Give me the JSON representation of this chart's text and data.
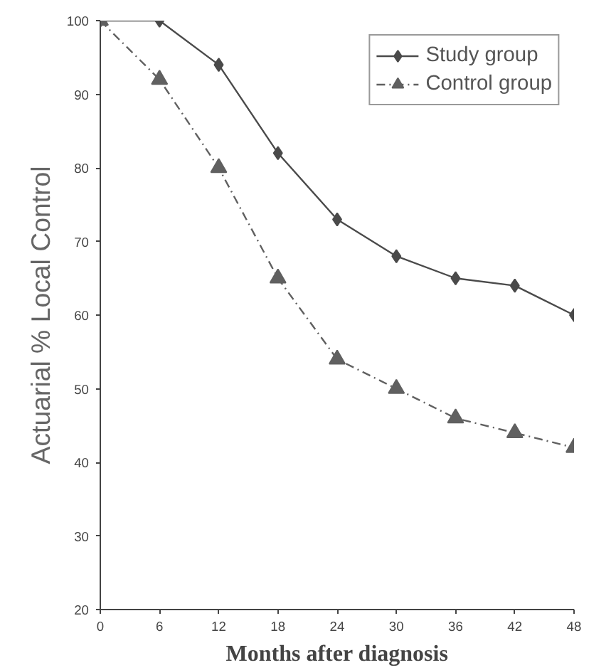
{
  "chart_data": {
    "type": "line",
    "xlabel": "Months after diagnosis",
    "ylabel": "Actuarial % Local Control",
    "x": [
      0,
      6,
      12,
      18,
      24,
      30,
      36,
      42,
      48
    ],
    "series": [
      {
        "name": "Study group",
        "color": "#4a4a4a",
        "values": [
          100,
          100,
          94,
          82,
          73,
          68,
          65,
          64,
          60
        ],
        "marker": "diamond",
        "line_style": "solid"
      },
      {
        "name": "Control group",
        "color": "#606060",
        "values": [
          100,
          92,
          80,
          65,
          54,
          50,
          46,
          44,
          42
        ],
        "marker": "triangle",
        "line_style": "dashed"
      }
    ],
    "xlim": [
      0,
      48
    ],
    "xticks": [
      0,
      6,
      12,
      18,
      24,
      30,
      36,
      42,
      48
    ],
    "ylim": [
      20,
      100
    ],
    "yticks": [
      20,
      30,
      40,
      50,
      60,
      70,
      80,
      90,
      100
    ],
    "grid": false,
    "legend": "top right"
  }
}
